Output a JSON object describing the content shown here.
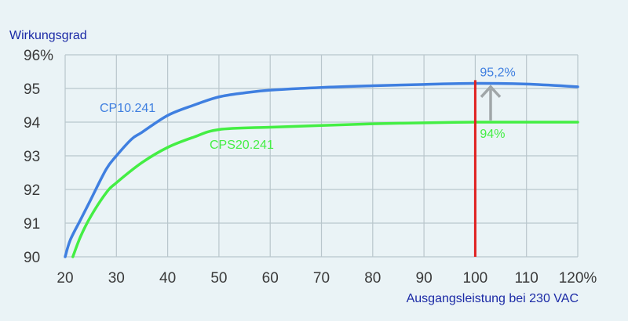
{
  "chart_data": {
    "type": "line",
    "ylabel": "Wirkungsgrad",
    "xlabel": "Ausgangsleistung bei 230 VAC",
    "x_ticks": [
      "20",
      "30",
      "40",
      "50",
      "60",
      "70",
      "80",
      "90",
      "100",
      "110",
      "120%"
    ],
    "y_ticks": [
      "90",
      "91",
      "92",
      "93",
      "94",
      "95",
      "96%"
    ],
    "xlim": [
      20,
      120
    ],
    "ylim": [
      90,
      96
    ],
    "grid": true,
    "background_color": "#eaf3f6",
    "grid_color": "#b9c6cc",
    "series": [
      {
        "name": "CP10.241",
        "color": "#3f7fe0",
        "x": [
          20,
          21,
          23,
          25,
          28,
          30,
          33,
          35,
          40,
          45,
          50,
          55,
          60,
          70,
          80,
          90,
          100,
          110,
          120
        ],
        "y": [
          90.0,
          90.5,
          91.1,
          91.7,
          92.6,
          93.0,
          93.5,
          93.7,
          94.2,
          94.5,
          94.75,
          94.87,
          94.95,
          95.03,
          95.08,
          95.12,
          95.15,
          95.13,
          95.05
        ]
      },
      {
        "name": "CPS20.241",
        "color": "#44ee44",
        "x": [
          21.5,
          23,
          25,
          28,
          30,
          35,
          40,
          45,
          50,
          60,
          70,
          80,
          90,
          100,
          110,
          120
        ],
        "y": [
          90.0,
          90.6,
          91.2,
          91.9,
          92.2,
          92.8,
          93.25,
          93.55,
          93.78,
          93.85,
          93.9,
          93.95,
          93.98,
          94.0,
          94.0,
          94.0
        ]
      }
    ],
    "marker_line": {
      "x": 100,
      "color": "#e02020"
    },
    "annotations": [
      {
        "text": "95,2%",
        "x": 100,
        "y": 95.2,
        "color": "#3f7fe0"
      },
      {
        "text": "94%",
        "x": 100,
        "y": 94.0,
        "color": "#44ee44"
      }
    ],
    "arrow": {
      "x": 103,
      "y_from": 94.05,
      "y_to": 95.05,
      "color": "#a0a6a8"
    }
  }
}
